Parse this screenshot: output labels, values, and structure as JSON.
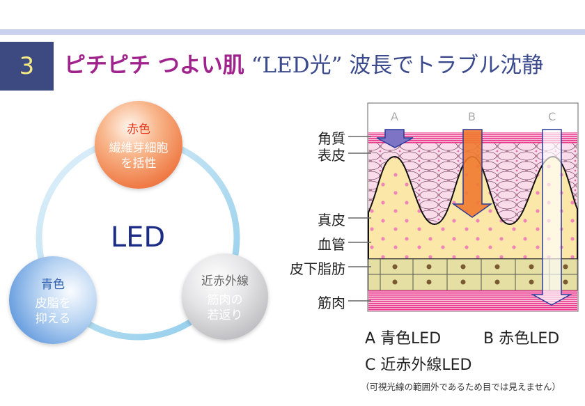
{
  "header": {
    "number": "3",
    "title_part1": "ピチピチ つよい肌",
    "title_part2": "“LED光”",
    "title_part3": "波長でトラブル沈静",
    "colors": {
      "band": "#c9d1ec",
      "number_box": "#3d4a82",
      "number": "#f6ec86",
      "title_magenta": "#a0228c",
      "title_navy": "#3b4a8c"
    }
  },
  "led_cycle": {
    "center": "LED",
    "red": {
      "heading": "赤色",
      "body_line1": "繊維芽細胞",
      "body_line2": "を括性"
    },
    "blue": {
      "heading": "青色",
      "body_line1": "皮脂を",
      "body_line2": "抑える"
    },
    "nir": {
      "heading": "近赤外線",
      "body_line1": "筋肉の",
      "body_line2": "若返り"
    }
  },
  "skin_diagram": {
    "arrows": [
      "A",
      "B",
      "C"
    ],
    "layers": [
      "角質",
      "表皮",
      "真皮",
      "血管",
      "皮下脂肪",
      "筋肉"
    ]
  },
  "legend": {
    "a": "A 青色LED",
    "b": "B 赤色LED",
    "c": "C 近赤外線LED"
  },
  "note": "（可視光線の範囲外であるため目では見えません）"
}
